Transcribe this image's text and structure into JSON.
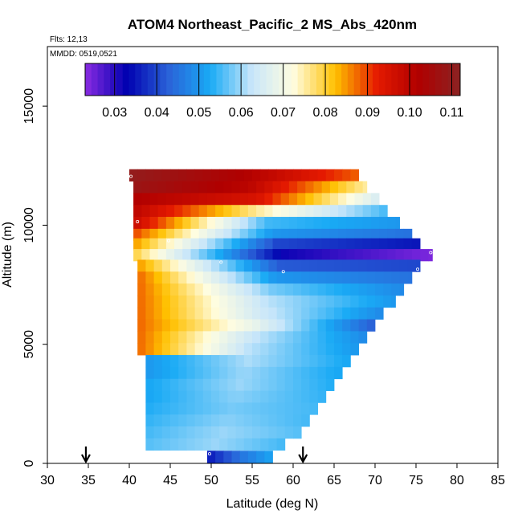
{
  "chart_data": {
    "type": "heatmap",
    "title": "ATOM4 Northeast_Pacific_2 MS_Abs_420nm",
    "flights_label": "Flts: 12,13",
    "date_label": "MMDD: 0519,0521",
    "xlabel": "Latitude (deg N)",
    "ylabel": "Altitude (m)",
    "xlim": [
      30,
      85
    ],
    "ylim": [
      0,
      17500
    ],
    "xticks": [
      "30",
      "35",
      "40",
      "45",
      "50",
      "55",
      "60",
      "65",
      "70",
      "75",
      "80",
      "85"
    ],
    "yticks": [
      "0",
      "5000",
      "10000",
      "15000"
    ],
    "colorbar": {
      "range": [
        0.023,
        0.112
      ],
      "ticks": [
        "0.03",
        "0.04",
        "0.05",
        "0.06",
        "0.07",
        "0.08",
        "0.09",
        "0.10",
        "0.11"
      ],
      "tick_values": [
        0.03,
        0.04,
        0.05,
        0.06,
        0.07,
        0.08,
        0.09,
        0.1,
        0.11
      ],
      "colors": [
        "#8a2be2",
        "#0000b0",
        "#2a62d8",
        "#19aaf5",
        "#c8e6fa",
        "#fffde0",
        "#ffc000",
        "#e51a00",
        "#b00000",
        "#8b2323"
      ]
    },
    "arrows_lat": [
      34.7,
      61.2
    ],
    "rows": [
      {
        "alt": 12100,
        "lat_min": 40.0,
        "lat_max": 68.0,
        "v_left": 0.11,
        "v_mid": 0.102,
        "v_right": 0.088
      },
      {
        "alt": 11600,
        "lat_min": 40.5,
        "lat_max": 69.0,
        "v_left": 0.108,
        "v_mid": 0.1,
        "v_right": 0.075
      },
      {
        "alt": 11100,
        "lat_min": 40.5,
        "lat_max": 70.5,
        "v_left": 0.102,
        "v_mid": 0.095,
        "v_right": 0.065
      },
      {
        "alt": 10600,
        "lat_min": 40.5,
        "lat_max": 71.5,
        "v_left": 0.1,
        "v_mid": 0.075,
        "v_right": 0.055
      },
      {
        "alt": 10100,
        "lat_min": 40.5,
        "lat_max": 73.0,
        "v_left": 0.098,
        "v_mid": 0.055,
        "v_right": 0.05
      },
      {
        "alt": 9600,
        "lat_min": 40.5,
        "lat_max": 74.5,
        "v_left": 0.09,
        "v_mid": 0.05,
        "v_right": 0.045
      },
      {
        "alt": 9200,
        "lat_min": 40.5,
        "lat_max": 75.5,
        "v_left": 0.085,
        "v_mid": 0.04,
        "v_right": 0.035
      },
      {
        "alt": 8750,
        "lat_min": 40.5,
        "lat_max": 77.0,
        "v_left": 0.08,
        "v_mid": 0.032,
        "v_right": 0.024
      },
      {
        "alt": 8300,
        "lat_min": 41.0,
        "lat_max": 75.5,
        "v_left": 0.085,
        "v_mid": 0.042,
        "v_right": 0.04
      },
      {
        "alt": 7800,
        "lat_min": 41.0,
        "lat_max": 74.5,
        "v_left": 0.088,
        "v_mid": 0.05,
        "v_right": 0.045
      },
      {
        "alt": 7300,
        "lat_min": 41.0,
        "lat_max": 73.5,
        "v_left": 0.088,
        "v_mid": 0.058,
        "v_right": 0.048
      },
      {
        "alt": 6800,
        "lat_min": 41.0,
        "lat_max": 72.5,
        "v_left": 0.088,
        "v_mid": 0.062,
        "v_right": 0.05
      },
      {
        "alt": 6300,
        "lat_min": 41.0,
        "lat_max": 71.0,
        "v_left": 0.088,
        "v_mid": 0.064,
        "v_right": 0.048
      },
      {
        "alt": 5800,
        "lat_min": 41.0,
        "lat_max": 70.0,
        "v_left": 0.088,
        "v_mid": 0.068,
        "v_right": 0.042
      },
      {
        "alt": 5300,
        "lat_min": 41.0,
        "lat_max": 69.0,
        "v_left": 0.088,
        "v_mid": 0.063,
        "v_right": 0.048
      },
      {
        "alt": 4800,
        "lat_min": 41.0,
        "lat_max": 68.0,
        "v_left": 0.088,
        "v_mid": 0.062,
        "v_right": 0.05
      },
      {
        "alt": 4300,
        "lat_min": 42.0,
        "lat_max": 67.0,
        "v_left": 0.05,
        "v_mid": 0.061,
        "v_right": 0.052
      },
      {
        "alt": 3800,
        "lat_min": 42.0,
        "lat_max": 66.0,
        "v_left": 0.05,
        "v_mid": 0.06,
        "v_right": 0.052
      },
      {
        "alt": 3300,
        "lat_min": 42.0,
        "lat_max": 65.0,
        "v_left": 0.052,
        "v_mid": 0.06,
        "v_right": 0.053
      },
      {
        "alt": 2800,
        "lat_min": 42.0,
        "lat_max": 64.0,
        "v_left": 0.052,
        "v_mid": 0.059,
        "v_right": 0.054
      },
      {
        "alt": 2300,
        "lat_min": 42.0,
        "lat_max": 63.0,
        "v_left": 0.053,
        "v_mid": 0.058,
        "v_right": 0.055
      },
      {
        "alt": 1800,
        "lat_min": 42.0,
        "lat_max": 62.0,
        "v_left": 0.054,
        "v_mid": 0.059,
        "v_right": 0.055
      },
      {
        "alt": 1300,
        "lat_min": 42.0,
        "lat_max": 61.0,
        "v_left": 0.055,
        "v_mid": 0.06,
        "v_right": 0.056
      },
      {
        "alt": 800,
        "lat_min": 42.0,
        "lat_max": 59.0,
        "v_left": 0.056,
        "v_mid": 0.06,
        "v_right": 0.055
      },
      {
        "alt": 280,
        "lat_min": 49.5,
        "lat_max": 57.5,
        "v_left": 0.035,
        "v_mid": 0.045,
        "v_right": 0.052
      }
    ],
    "markers": [
      {
        "lat": 40.2,
        "alt": 12050
      },
      {
        "lat": 41.0,
        "alt": 10150
      },
      {
        "lat": 44.8,
        "alt": 9350
      },
      {
        "lat": 51.2,
        "alt": 8450
      },
      {
        "lat": 58.8,
        "alt": 8050
      },
      {
        "lat": 75.2,
        "alt": 8150
      },
      {
        "lat": 76.8,
        "alt": 8850
      },
      {
        "lat": 49.8,
        "alt": 400
      }
    ]
  }
}
